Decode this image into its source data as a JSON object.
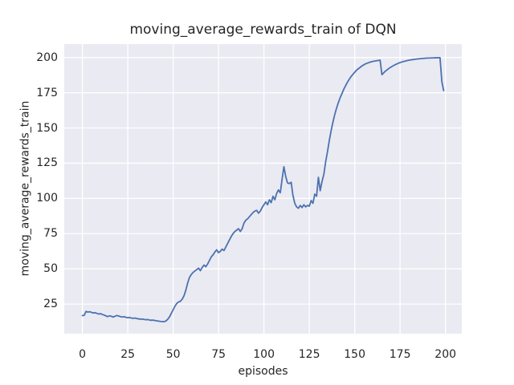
{
  "figure": {
    "background": "#ffffff"
  },
  "chart_data": {
    "type": "line",
    "title": "moving_average_rewards_train of DQN",
    "xlabel": "episodes",
    "ylabel": "moving_average_rewards_train",
    "xlim": [
      -10,
      209
    ],
    "ylim": [
      4,
      209.5
    ],
    "x_ticks": [
      0,
      25,
      50,
      75,
      100,
      125,
      150,
      175,
      200
    ],
    "y_ticks": [
      25,
      50,
      75,
      100,
      125,
      150,
      175,
      200
    ],
    "grid": true,
    "legend": "none",
    "style": {
      "axes_background": "#eaeaf2",
      "grid_color": "#ffffff",
      "line_color": "#4c72b0",
      "text_color": "#262626",
      "line_width": 1.8
    },
    "series": [
      {
        "name": "moving_average_rewards_train",
        "x_is_index": true,
        "values": [
          16.8,
          17.0,
          19.8,
          19.3,
          19.6,
          19.1,
          18.7,
          18.9,
          18.4,
          17.9,
          18.2,
          17.6,
          17.2,
          16.6,
          16.1,
          16.7,
          16.3,
          15.8,
          16.4,
          16.9,
          16.5,
          16.1,
          15.8,
          16.0,
          15.6,
          15.3,
          15.5,
          15.1,
          14.9,
          15.1,
          14.7,
          14.5,
          14.3,
          14.4,
          14.1,
          13.9,
          14.0,
          13.7,
          13.5,
          13.6,
          13.3,
          13.1,
          12.9,
          12.7,
          12.6,
          12.5,
          13.0,
          14.2,
          16.0,
          18.5,
          21.0,
          23.5,
          25.5,
          26.5,
          27.0,
          28.5,
          31.0,
          35.0,
          40.0,
          44.0,
          46.0,
          47.5,
          48.5,
          49.5,
          50.5,
          48.7,
          51.0,
          52.7,
          51.5,
          53.5,
          56.0,
          58.5,
          60.0,
          62.0,
          63.5,
          61.5,
          62.5,
          64.0,
          63.0,
          65.5,
          68.0,
          70.5,
          73.0,
          75.0,
          76.5,
          77.5,
          78.5,
          76.5,
          78.5,
          82.5,
          84.5,
          85.5,
          87.0,
          88.5,
          90.0,
          91.0,
          91.5,
          89.5,
          91.0,
          93.5,
          95.5,
          97.5,
          95.5,
          99.0,
          97.0,
          101.5,
          99.0,
          103.5,
          106.0,
          104.0,
          113.5,
          122.5,
          115.5,
          111.0,
          110.5,
          111.5,
          102.0,
          96.5,
          94.0,
          93.0,
          95.0,
          93.5,
          95.5,
          94.0,
          95.0,
          94.5,
          98.5,
          96.5,
          103.0,
          101.5,
          115.0,
          105.5,
          112.0,
          117.0,
          126.0,
          133.0,
          141.0,
          148.0,
          154.0,
          159.5,
          164.0,
          168.0,
          171.5,
          174.5,
          177.5,
          180.0,
          182.5,
          184.5,
          186.5,
          188.0,
          189.5,
          191.0,
          192.0,
          193.0,
          194.0,
          194.8,
          195.5,
          196.0,
          196.5,
          196.9,
          197.2,
          197.5,
          197.7,
          197.9,
          198.1,
          187.8,
          189.2,
          190.4,
          191.4,
          192.4,
          193.2,
          194.0,
          194.7,
          195.3,
          195.9,
          196.4,
          196.8,
          197.2,
          197.5,
          197.8,
          198.1,
          198.3,
          198.5,
          198.7,
          198.9,
          199.0,
          199.2,
          199.3,
          199.4,
          199.5,
          199.6,
          199.6,
          199.7,
          199.7,
          199.8,
          199.8,
          199.8,
          199.9,
          183.0,
          176.5
        ]
      }
    ]
  }
}
